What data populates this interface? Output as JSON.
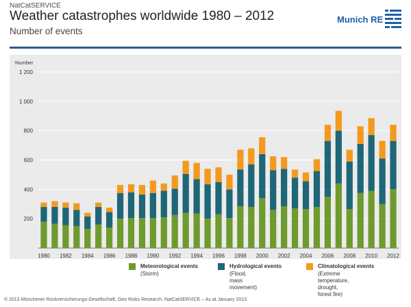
{
  "header": {
    "service": "NatCatSERVICE",
    "title": "Weather catastrophes worldwide 1980 – 2012",
    "subtitle": "Number of events",
    "logo_text": "Munich RE"
  },
  "legend": [
    {
      "title": "Meteorological events",
      "sub": "(Storm)",
      "color": "#6f9a2e"
    },
    {
      "title": "Hydrological events",
      "sub": "(Flood, mass\nmovement)",
      "color": "#1e6678"
    },
    {
      "title": "Climatological events",
      "sub": "(Extreme temperature,\ndrought, forest fire)",
      "color": "#f39a1e"
    }
  ],
  "footer": "© 2013 Münchener Rückversicherungs-Gesellschaft, Geo Risks Research, NatCatSERVICE – As at January 2013",
  "chart_data": {
    "type": "bar",
    "stacked": true,
    "ylabel": "Number",
    "ylim": [
      0,
      1200
    ],
    "yticks": [
      200,
      400,
      600,
      800,
      "1 000",
      "1 200"
    ],
    "ytick_values": [
      200,
      400,
      600,
      800,
      1000,
      1200
    ],
    "xtick_labels": [
      "1980",
      "1982",
      "1984",
      "1986",
      "1988",
      "1990",
      "1992",
      "1994",
      "1996",
      "1998",
      "2000",
      "2002",
      "2004",
      "2006",
      "2008",
      "2010",
      "2012"
    ],
    "grid": true,
    "categories": [
      1980,
      1981,
      1982,
      1983,
      1984,
      1985,
      1986,
      1987,
      1988,
      1989,
      1990,
      1991,
      1992,
      1993,
      1994,
      1995,
      1996,
      1997,
      1998,
      1999,
      2000,
      2001,
      2002,
      2003,
      2004,
      2005,
      2006,
      2007,
      2008,
      2009,
      2010,
      2011,
      2012
    ],
    "series": [
      {
        "name": "Meteorological events",
        "color": "#6f9a2e",
        "values": [
          180,
          165,
          155,
          150,
          130,
          160,
          140,
          200,
          205,
          205,
          205,
          210,
          225,
          240,
          235,
          200,
          230,
          205,
          285,
          280,
          340,
          260,
          285,
          270,
          265,
          280,
          350,
          440,
          265,
          375,
          390,
          300,
          400
        ]
      },
      {
        "name": "Hydrological events",
        "color": "#1e6678",
        "values": [
          100,
          115,
          120,
          110,
          85,
          120,
          105,
          175,
          175,
          160,
          170,
          180,
          180,
          265,
          235,
          235,
          220,
          195,
          250,
          290,
          300,
          270,
          255,
          210,
          190,
          245,
          380,
          360,
          325,
          335,
          380,
          310,
          330
        ]
      },
      {
        "name": "Climatological events",
        "color": "#f39a1e",
        "values": [
          30,
          40,
          35,
          45,
          25,
          30,
          30,
          55,
          55,
          65,
          85,
          50,
          90,
          90,
          110,
          105,
          100,
          100,
          135,
          110,
          115,
          95,
          80,
          55,
          60,
          80,
          110,
          135,
          80,
          120,
          115,
          120,
          110
        ]
      }
    ]
  }
}
